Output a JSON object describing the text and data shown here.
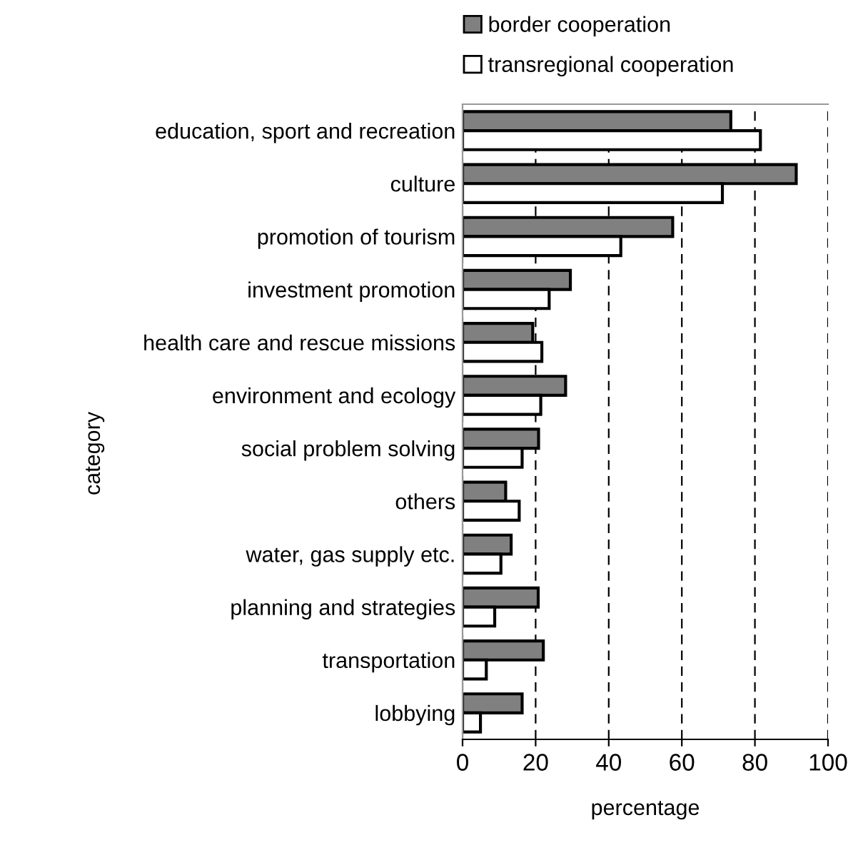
{
  "chart_data": {
    "type": "bar",
    "orientation": "horizontal",
    "xlabel": "percentage",
    "ylabel": "category",
    "categories": [
      "education, sport and recreation",
      "culture",
      "promotion of tourism",
      "investment promotion",
      "health care and rescue missions",
      "environment and ecology",
      "social problem solving",
      "others",
      "water, gas supply etc.",
      "planning and strategies",
      "transportation",
      "lobbying"
    ],
    "series": [
      {
        "name": "border cooperation",
        "color": "#808080",
        "values": [
          73.4,
          91.3,
          57.5,
          29.5,
          19.2,
          28.2,
          20.8,
          11.8,
          13.3,
          20.7,
          22.1,
          16.3
        ]
      },
      {
        "name": "transregional cooperation",
        "color": "#ffffff",
        "values": [
          81.5,
          71.1,
          43.3,
          23.7,
          21.7,
          21.4,
          16.3,
          15.5,
          10.5,
          8.8,
          6.5,
          4.9
        ]
      }
    ],
    "xlim": [
      0,
      100
    ],
    "xticks": [
      0,
      20,
      40,
      60,
      80,
      100
    ],
    "grid": "x",
    "legend": "top"
  }
}
